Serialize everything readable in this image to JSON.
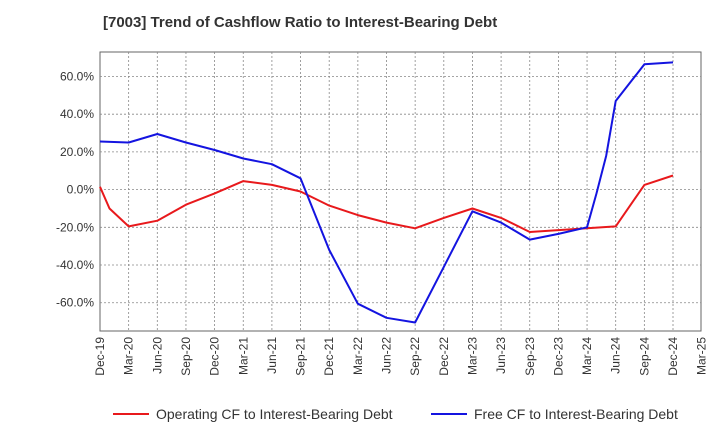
{
  "chart_data": {
    "type": "line",
    "title": "[7003]  Trend of Cashflow Ratio to Interest-Bearing Debt",
    "xlabel": "",
    "ylabel": "",
    "ylim": [
      -75,
      73
    ],
    "y_ticks": [
      60,
      40,
      20,
      0,
      -20,
      -40,
      -60
    ],
    "y_tick_labels": [
      "60.0%",
      "40.0%",
      "20.0%",
      "0.0%",
      "-20.0%",
      "-40.0%",
      "-60.0%"
    ],
    "x_tick_labels": [
      "Dec-19",
      "Mar-20",
      "Jun-20",
      "Sep-20",
      "Dec-20",
      "Mar-21",
      "Jun-21",
      "Sep-21",
      "Dec-21",
      "Mar-22",
      "Jun-22",
      "Sep-22",
      "Dec-22",
      "Mar-23",
      "Jun-23",
      "Sep-23",
      "Dec-23",
      "Mar-24",
      "Jun-24",
      "Sep-24",
      "Dec-24",
      "Mar-25"
    ],
    "grid": true,
    "legend_position": "bottom",
    "x": [
      "Dec-19",
      "Mar-20",
      "Jun-20",
      "Sep-20",
      "Dec-20",
      "Mar-21",
      "Jun-21",
      "Sep-21",
      "Dec-21",
      "Mar-22",
      "Jun-22",
      "Sep-22",
      "Dec-22",
      "Mar-23",
      "Jun-23",
      "Sep-23",
      "Dec-23",
      "Mar-24",
      "Jun-24",
      "Sep-24",
      "Dec-24"
    ],
    "series": [
      {
        "name": "Operating CF to Interest-Bearing Debt",
        "color": "#e8191c",
        "points": [
          {
            "x": "Dec-19",
            "y": 1.5
          },
          {
            "x": "Dec-19+",
            "y": -10
          },
          {
            "x": "Mar-20",
            "y": -19.5
          },
          {
            "x": "Jun-20",
            "y": -16.5
          },
          {
            "x": "Sep-20",
            "y": -8
          },
          {
            "x": "Dec-20",
            "y": -2
          },
          {
            "x": "Mar-21",
            "y": 4.5
          },
          {
            "x": "Jun-21",
            "y": 2.5
          },
          {
            "x": "Sep-21",
            "y": -1
          },
          {
            "x": "Dec-21",
            "y": -8.5
          },
          {
            "x": "Mar-22",
            "y": -13.5
          },
          {
            "x": "Jun-22",
            "y": -17.5
          },
          {
            "x": "Sep-22",
            "y": -20.5
          },
          {
            "x": "Dec-22",
            "y": -15
          },
          {
            "x": "Mar-23",
            "y": -10
          },
          {
            "x": "Jun-23",
            "y": -15
          },
          {
            "x": "Sep-23",
            "y": -22.5
          },
          {
            "x": "Dec-23",
            "y": -21.5
          },
          {
            "x": "Mar-24",
            "y": -20.5
          },
          {
            "x": "Jun-24",
            "y": -19.5
          },
          {
            "x": "Sep-24",
            "y": 2.5
          },
          {
            "x": "Dec-24",
            "y": 7.5
          }
        ]
      },
      {
        "name": "Free CF to Interest-Bearing Debt",
        "color": "#1414e0",
        "points": [
          {
            "x": "Dec-19",
            "y": 25.5
          },
          {
            "x": "Mar-20",
            "y": 25
          },
          {
            "x": "Jun-20",
            "y": 29.5
          },
          {
            "x": "Sep-20",
            "y": 25
          },
          {
            "x": "Dec-20",
            "y": 21
          },
          {
            "x": "Mar-21",
            "y": 16.5
          },
          {
            "x": "Jun-21",
            "y": 13.5
          },
          {
            "x": "Sep-21",
            "y": 6
          },
          {
            "x": "Dec-21",
            "y": -32
          },
          {
            "x": "Mar-22",
            "y": -60.5
          },
          {
            "x": "Jun-22",
            "y": -68
          },
          {
            "x": "Sep-22",
            "y": -70.5
          },
          {
            "x": "Dec-22",
            "y": -41
          },
          {
            "x": "Mar-23",
            "y": -11.5
          },
          {
            "x": "Jun-23",
            "y": -17.5
          },
          {
            "x": "Sep-23",
            "y": -26.5
          },
          {
            "x": "Dec-23",
            "y": -23.5
          },
          {
            "x": "Mar-24",
            "y": -20
          },
          {
            "x": "Mar-24+",
            "y": -2
          },
          {
            "x": "Jun-24-",
            "y": 18
          },
          {
            "x": "Jun-24",
            "y": 47
          },
          {
            "x": "Sep-24",
            "y": 66.5
          },
          {
            "x": "Dec-24",
            "y": 67.5
          }
        ]
      }
    ]
  }
}
